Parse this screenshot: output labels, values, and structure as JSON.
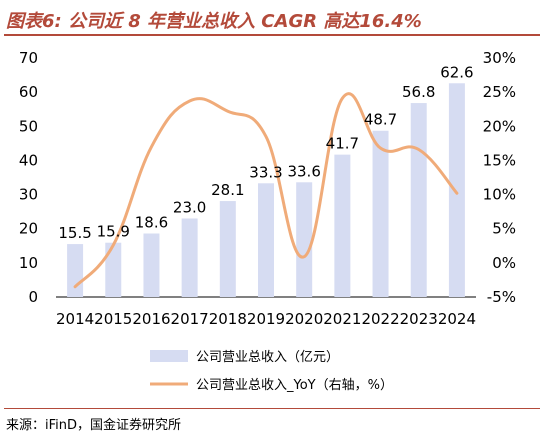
{
  "title": "图表6:  公司近 8 年营业总收入 CAGR 高达16.4%",
  "source": "来源：iFinD，国金证券研究所",
  "colors": {
    "bar": "#d6dcf2",
    "line": "#f0ab79",
    "title": "#b34a3a"
  },
  "chart_data": {
    "type": "bar+line",
    "categories": [
      "2014",
      "2015",
      "2016",
      "2017",
      "2018",
      "2019",
      "2020",
      "2021",
      "2022",
      "2023",
      "2024"
    ],
    "series": [
      {
        "name": "公司营业总收入（亿元）",
        "type": "bar",
        "axis": "left",
        "values": [
          15.5,
          15.9,
          18.6,
          23.0,
          28.1,
          33.3,
          33.6,
          41.7,
          48.7,
          56.8,
          62.6
        ],
        "labels": [
          "15.5",
          "15.9",
          "18.6",
          "23.0",
          "28.1",
          "33.3",
          "33.6",
          "41.7",
          "48.7",
          "56.8",
          "62.6"
        ]
      },
      {
        "name": "公司营业总收入_YoY（右轴，%）",
        "type": "line",
        "axis": "right",
        "smooth": true,
        "values": [
          -3.5,
          2.6,
          17.0,
          23.7,
          22.2,
          18.5,
          0.9,
          24.1,
          16.8,
          16.6,
          10.2
        ]
      }
    ],
    "yleft": {
      "min": 0,
      "max": 70,
      "ticks": [
        "0",
        "10",
        "20",
        "30",
        "40",
        "50",
        "60",
        "70"
      ]
    },
    "yright": {
      "min": -5,
      "max": 30,
      "ticks": [
        "-5%",
        "0%",
        "5%",
        "10%",
        "15%",
        "20%",
        "25%",
        "30%"
      ]
    },
    "legend_position": "bottom",
    "grid": false
  }
}
